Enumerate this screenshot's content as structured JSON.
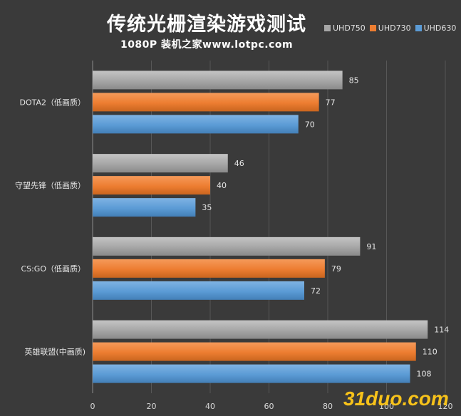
{
  "chart_data": {
    "type": "bar",
    "orientation": "horizontal",
    "title": "传统光栅渲染游戏测试",
    "subtitle": "1080P 装机之家www.lotpc.com",
    "categories": [
      "DOTA2（低画质）",
      "守望先锋（低画质）",
      "CS:GO（低画质）",
      "英雄联盟(中画质)"
    ],
    "series": [
      {
        "name": "UHD750",
        "color": "#a6a6a6",
        "values": [
          85,
          46,
          91,
          114
        ]
      },
      {
        "name": "UHD730",
        "color": "#ed7d31",
        "values": [
          77,
          40,
          79,
          110
        ]
      },
      {
        "name": "UHD630",
        "color": "#5b9bd5",
        "values": [
          70,
          35,
          72,
          108
        ]
      }
    ],
    "xlim": [
      0,
      120
    ],
    "xticks": [
      "0",
      "20",
      "40",
      "60",
      "80",
      "100",
      "120"
    ],
    "grid": true,
    "legend_position": "top-right"
  },
  "watermark": "31duo.com"
}
